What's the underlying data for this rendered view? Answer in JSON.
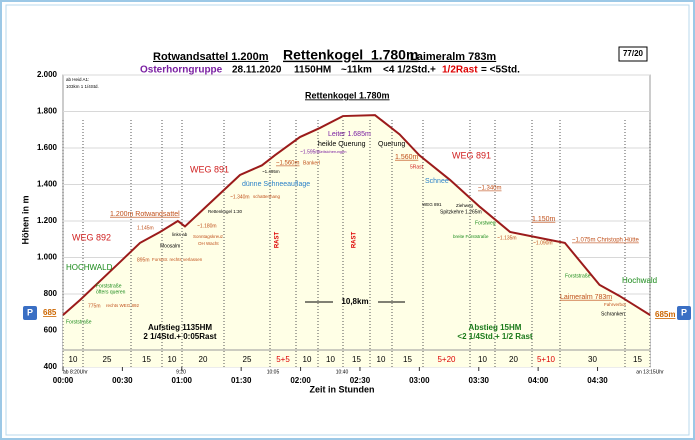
{
  "chart_data": {
    "type": "area",
    "header": {
      "left": "Rotwandsattel 1.200m",
      "main": "Rettenkogel  1.780m",
      "right": "Laimeralm 783m"
    },
    "subheader": {
      "group": "Osterhorngruppe",
      "date": "28.11.2020",
      "hm": "1150HM",
      "km": "~11km",
      "time": "<4 1/2Std.+",
      "rest": "1/2Rast",
      "total": "= <5Std."
    },
    "badge": "77/20",
    "ylabel": "Höhen in m",
    "xlabel": "Zeit in Stunden",
    "x": [
      0,
      8.6,
      28.8,
      38.9,
      49,
      58,
      61.6,
      69,
      89.4,
      100.5,
      107,
      119.7,
      129.8,
      141.4,
      157.6,
      170,
      180,
      195.5,
      210.6,
      225.8,
      241,
      253.5,
      271,
      281,
      296.5
    ],
    "values": [
      685,
      767,
      975,
      1080,
      1140,
      1200,
      1170,
      1245,
      1452,
      1505,
      1560,
      1660,
      1710,
      1775,
      1780,
      1675,
      1560,
      1425,
      1277,
      1140,
      1107,
      1080,
      850,
      790,
      685
    ],
    "color": "#9b1b1b",
    "fill": "#ffffe6",
    "xlim": [
      0,
      296.5
    ],
    "ylim": [
      400,
      2000
    ],
    "yticks": [
      400,
      600,
      800,
      {
        "value": 1000,
        "label": "1.000"
      },
      {
        "value": 1200,
        "label": "1.200"
      },
      {
        "value": 1400,
        "label": "1.400"
      },
      {
        "value": 1600,
        "label": "1.600"
      },
      {
        "value": 1800,
        "label": "1.800"
      },
      {
        "value": 2000,
        "label": "2.000"
      }
    ],
    "xticks": [
      {
        "value": 0,
        "label": "00:00"
      },
      {
        "value": 30,
        "label": "00:30"
      },
      {
        "value": 60,
        "label": "01:00"
      },
      {
        "value": 90,
        "label": "01:30"
      },
      {
        "value": 120,
        "label": "02:00"
      },
      {
        "value": 150,
        "label": "02:30"
      },
      {
        "value": 180,
        "label": "03:00"
      },
      {
        "value": 210,
        "label": "03:30"
      },
      {
        "value": 240,
        "label": "04:00"
      },
      {
        "value": 270,
        "label": "04:30"
      }
    ],
    "grid": true,
    "segments": [
      "10",
      "25",
      "15",
      "10",
      "20",
      "25",
      "5+5",
      "10",
      "10",
      "15",
      "10",
      "15",
      "5+20",
      "10",
      "20",
      "5+10",
      "30",
      "15"
    ],
    "times": [
      "ab 8:20Uhr",
      "9:20",
      "10:05",
      "10:40",
      "an 13:15Uhr"
    ],
    "start_elevation": "685",
    "end_elevation": "685m",
    "parking": "P",
    "summary": {
      "up1": "Aufstieg 1135HM",
      "up2": "2 1/4Std.+ 0:05Rast",
      "down1": "Abstieg 15HM",
      "down2": "<2 1/4Std.+ 1/2 Rast",
      "distance": "10,8km"
    },
    "rast": [
      "RAST",
      "RAST"
    ],
    "annotations": [
      "ab Heid A1:",
      "103km 1 1/4Std.",
      "WEG 892",
      "HOCHWALD",
      "Forststraße",
      "Forststraße",
      "öfters queren",
      "775m",
      "rechts WEG 892",
      "895m",
      "Forststr. rechts verlassen",
      "1.145m",
      "Moosalm",
      "links ab",
      "1.200m Rotwandsattel",
      "~1.180m",
      "Sonntagskreuz",
      "OH Wacht",
      "Rettenkogel 1:30",
      "WEG 891",
      "~1.340m",
      "schattenhang",
      "dünne Schneeauflage",
      "~1.495m",
      "~1.560m",
      "Bankerl",
      "~1.595m",
      "Seilsicherungen",
      "heikle Querung",
      "Leiter 1.685m",
      "Rettenkogel 1.780m",
      "Querung",
      "1.560m",
      "5Rast",
      "WEG 891",
      "Schnee",
      "~1.340m",
      "WEG 891",
      "Ziehweg",
      "Spitzkehre 1.265m",
      "Forstweg",
      "breite Forststraße",
      "~1.135m",
      "1.150m",
      "~1.090m",
      "~1.075m Christoph Hütte",
      "Forststraße",
      "Hochwald",
      "Laimeralm 783m",
      "Fahrverbot",
      "Schranken"
    ]
  }
}
